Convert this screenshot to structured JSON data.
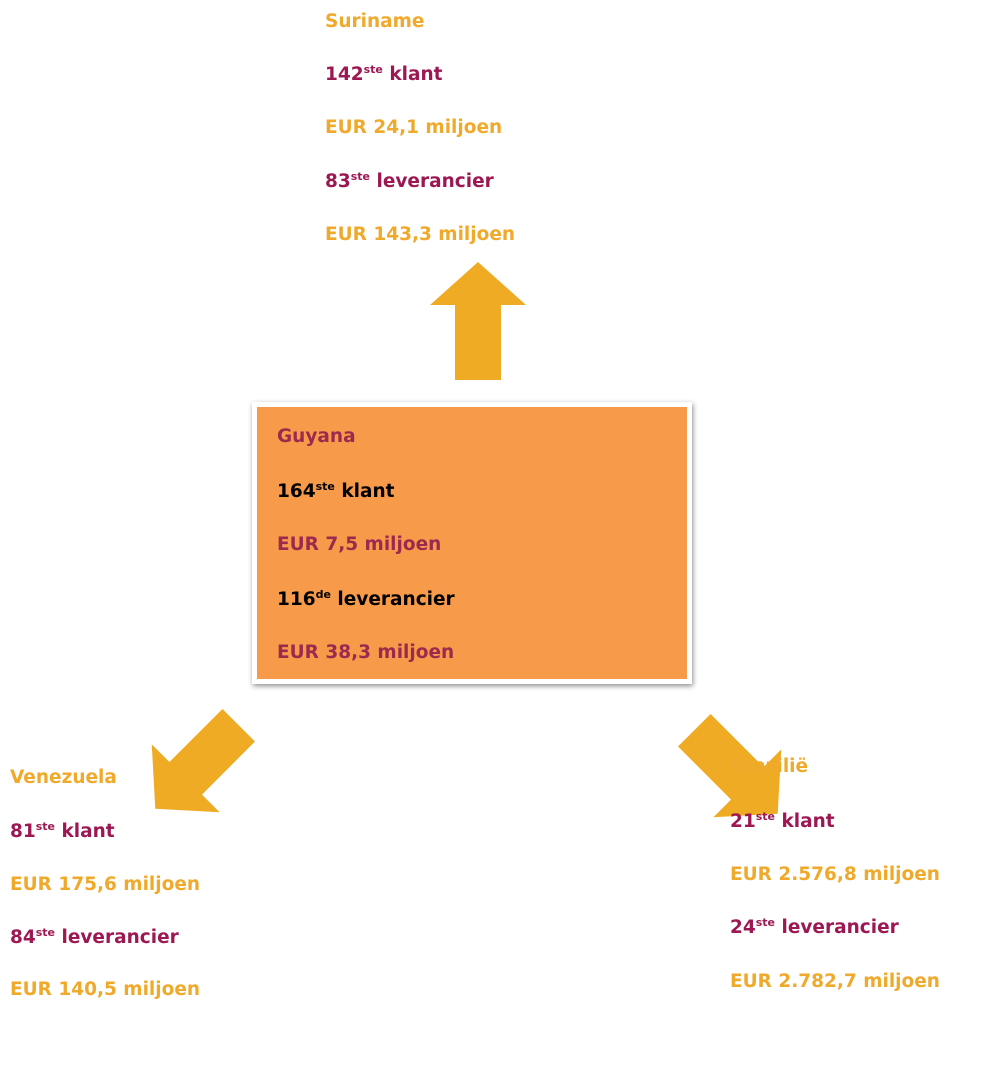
{
  "nodes": [
    {
      "title": "Suriname",
      "client_rank": 142,
      "client_suffix": "ste",
      "client_label": "klant",
      "client_value": "EUR 24,1 miljoen",
      "supplier_rank": 83,
      "supplier_suffix": "ste",
      "supplier_label": "leverancier",
      "supplier_value": "EUR 143,3 miljoen"
    },
    {
      "title": "Guyana",
      "client_rank": 164,
      "client_suffix": "ste",
      "client_label": "klant",
      "client_value": "EUR 7,5 miljoen",
      "supplier_rank": 116,
      "supplier_suffix": "de",
      "supplier_label": "leverancier",
      "supplier_value": "EUR 38,3 miljoen"
    },
    {
      "title": "Venezuela",
      "client_rank": 81,
      "client_suffix": "ste",
      "client_label": "klant",
      "client_value": "EUR 175,6 miljoen",
      "supplier_rank": 84,
      "supplier_suffix": "ste",
      "supplier_label": "leverancier",
      "supplier_value": "EUR 140,5 miljoen"
    },
    {
      "title": "Brazilië",
      "client_rank": 21,
      "client_suffix": "ste",
      "client_label": "klant",
      "client_value": "EUR 2.576,8 miljoen",
      "supplier_rank": 24,
      "supplier_suffix": "ste",
      "supplier_label": "leverancier",
      "supplier_value": "EUR 2.782,7 miljoen"
    }
  ]
}
